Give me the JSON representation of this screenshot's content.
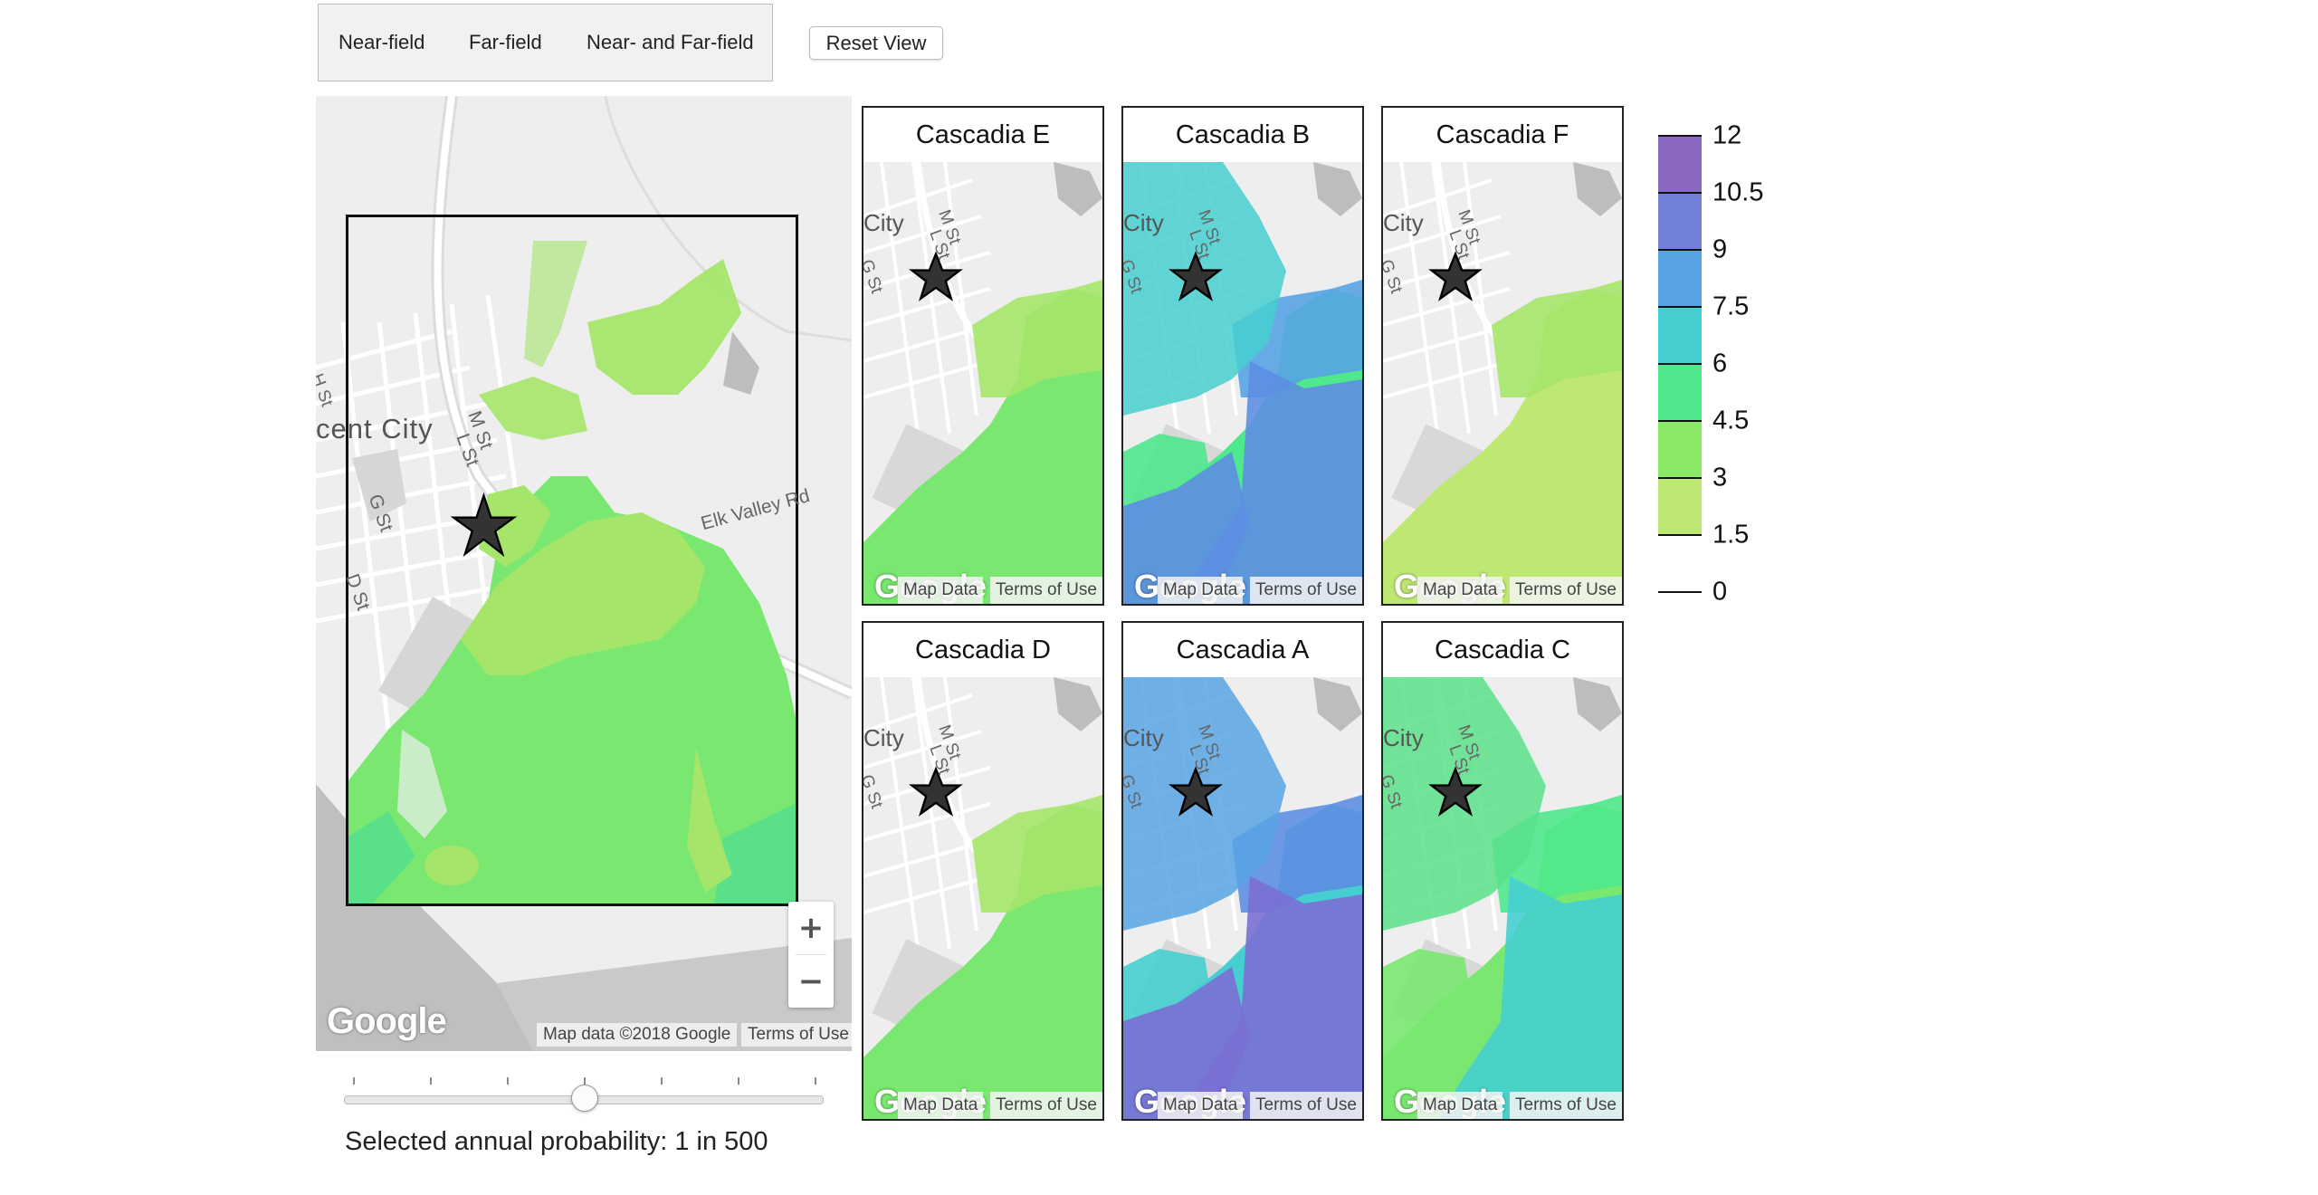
{
  "modes": {
    "near_field": "Near-field",
    "far_field": "Far-field",
    "both": "Near- and Far-field"
  },
  "reset_button": "Reset View",
  "main_map": {
    "street_labels": {
      "city": "cent City",
      "h_st": "H St",
      "m_st": "M St",
      "l_st": "L St",
      "g_st": "G St",
      "d_st": "D St",
      "elk_valley": "Elk Valley Rd"
    },
    "zoom_in": "+",
    "zoom_out": "−",
    "google_logo": "Google",
    "attribution": "Map data ©2018 Google",
    "terms": "Terms of Use"
  },
  "slider": {
    "label": "Selected annual probability: 1 in 500",
    "position_fraction": 0.5,
    "tick_count": 7
  },
  "panels": [
    {
      "title": "Cascadia E",
      "map_data": "Map Data",
      "terms": "Terms of Use",
      "google_logo": "Google",
      "city_label": "City",
      "m_st": "M St",
      "l_st": "L St",
      "g_st": "G St",
      "scheme": "light"
    },
    {
      "title": "Cascadia B",
      "map_data": "Map Data",
      "terms": "Terms of Use",
      "google_logo": "Google",
      "city_label": "City",
      "m_st": "M St",
      "l_st": "L St",
      "g_st": "G St",
      "scheme": "deep"
    },
    {
      "title": "Cascadia F",
      "map_data": "Map Data",
      "terms": "Terms of Use",
      "google_logo": "Google",
      "city_label": "City",
      "m_st": "M St",
      "l_st": "L St",
      "g_st": "G St",
      "scheme": "lighter"
    },
    {
      "title": "Cascadia D",
      "map_data": "Map Data",
      "terms": "Terms of Use",
      "google_logo": "Google",
      "city_label": "City",
      "m_st": "M St",
      "l_st": "L St",
      "g_st": "G St",
      "scheme": "light"
    },
    {
      "title": "Cascadia A",
      "map_data": "Map Data",
      "terms": "Terms of Use",
      "google_logo": "Google",
      "city_label": "City",
      "m_st": "M St",
      "l_st": "L St",
      "g_st": "G St",
      "scheme": "deepest"
    },
    {
      "title": "Cascadia C",
      "map_data": "Map Data",
      "terms": "Terms of Use",
      "google_logo": "Google",
      "city_label": "City",
      "m_st": "M St",
      "l_st": "L St",
      "g_st": "G St",
      "scheme": "medium"
    }
  ],
  "legend": {
    "labels": [
      "12",
      "10.5",
      "9",
      "7.5",
      "6",
      "4.5",
      "3",
      "1.5",
      "0"
    ],
    "colors": [
      "#8b69c2",
      "#727fd8",
      "#57a3e4",
      "#46cfd0",
      "#4fe88d",
      "#8aea67",
      "#bfe873"
    ]
  },
  "colors": {
    "land": "#eeeeee",
    "road": "#ffffff",
    "block": "#d8d8d8",
    "water": "#bfbfbf"
  }
}
